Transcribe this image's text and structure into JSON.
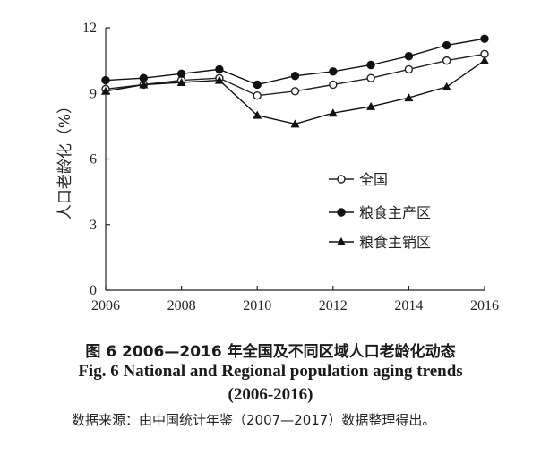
{
  "chart_data": {
    "type": "line",
    "ylabel": "人口老龄化（%）",
    "xlabel": "",
    "x": [
      2006,
      2007,
      2008,
      2009,
      2010,
      2011,
      2012,
      2013,
      2014,
      2015,
      2016
    ],
    "xticks": [
      "2006",
      "2008",
      "2010",
      "2012",
      "2014",
      "2016"
    ],
    "yticks": [
      "0",
      "3",
      "6",
      "9",
      "12"
    ],
    "xlim": [
      2006,
      2016
    ],
    "ylim": [
      0,
      12
    ],
    "grid": false,
    "legend_placement": "center-right",
    "series": [
      {
        "name": "全国",
        "marker": "open-circle",
        "color": "#222222",
        "values": [
          9.2,
          9.4,
          9.6,
          9.7,
          8.9,
          9.1,
          9.4,
          9.7,
          10.1,
          10.5,
          10.8
        ]
      },
      {
        "name": "粮食主产区",
        "marker": "filled-circle",
        "color": "#111111",
        "values": [
          9.6,
          9.7,
          9.9,
          10.1,
          9.4,
          9.8,
          10.0,
          10.3,
          10.7,
          11.2,
          11.5
        ]
      },
      {
        "name": "粮食主销区",
        "marker": "filled-triangle",
        "color": "#111111",
        "values": [
          9.1,
          9.4,
          9.5,
          9.6,
          8.0,
          7.6,
          8.1,
          8.4,
          8.8,
          9.3,
          10.5
        ]
      }
    ]
  },
  "caption": {
    "cn": "图 6 2006—2016 年全国及不同区域人口老龄化动态",
    "en_line1": "Fig. 6 National and Regional population aging trends",
    "en_line2": "(2006-2016)"
  },
  "source": "数据来源：由中国统计年鉴（2007—2017）数据整理得出。"
}
